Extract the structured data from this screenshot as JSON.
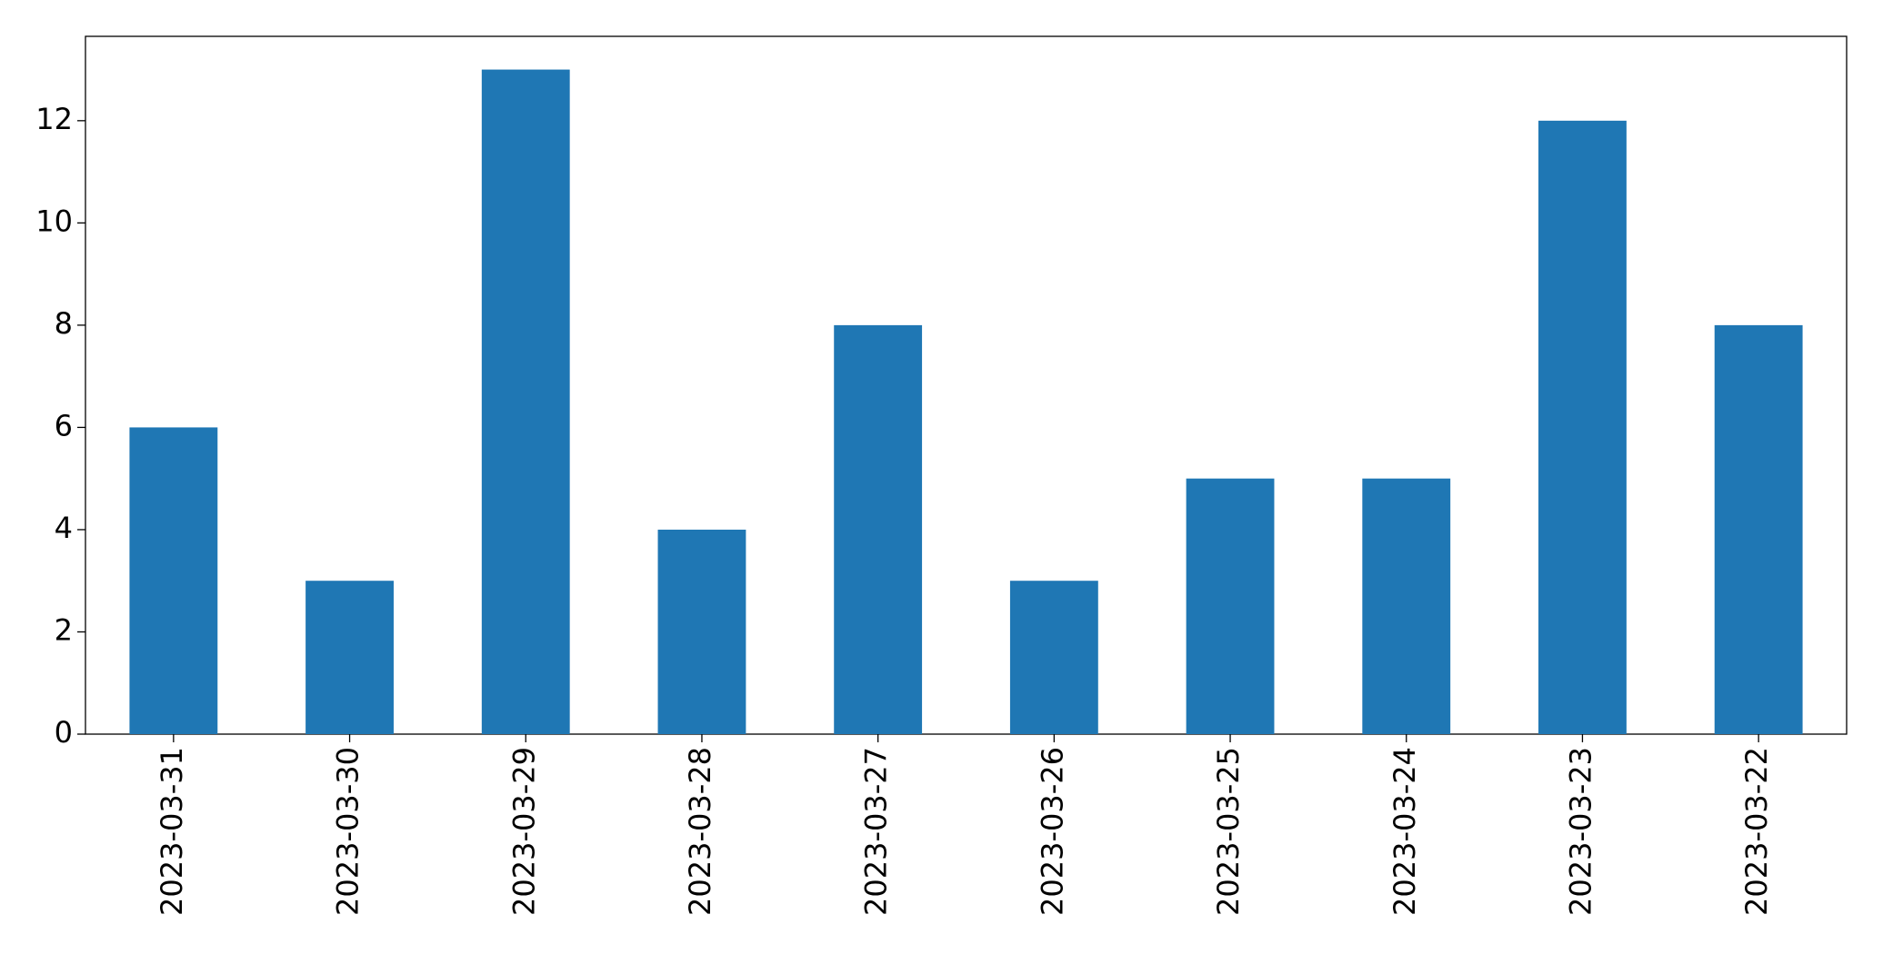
{
  "chart_data": {
    "type": "bar",
    "categories": [
      "2023-03-31",
      "2023-03-30",
      "2023-03-29",
      "2023-03-28",
      "2023-03-27",
      "2023-03-26",
      "2023-03-25",
      "2023-03-24",
      "2023-03-23",
      "2023-03-22"
    ],
    "values": [
      6,
      3,
      13,
      4,
      8,
      3,
      5,
      5,
      12,
      8
    ],
    "color": "#1f77b4",
    "ylim": [
      0,
      13.65
    ],
    "yticks": [
      0,
      2,
      4,
      6,
      8,
      10,
      12
    ],
    "grid": false
  }
}
